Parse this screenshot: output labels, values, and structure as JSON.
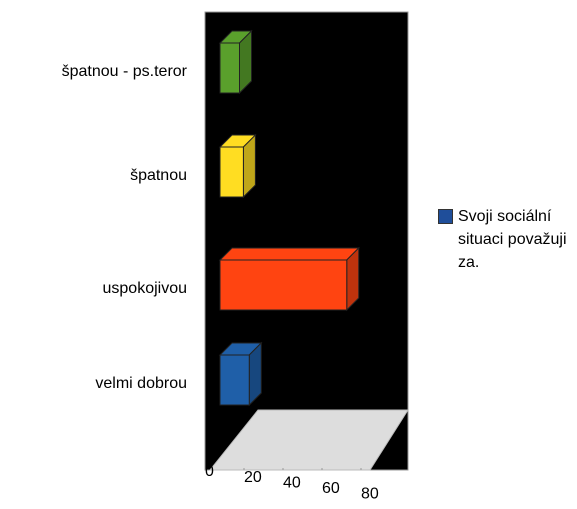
{
  "chart_data": {
    "type": "bar3d",
    "categories": [
      "špatnou - ps.teror",
      "špatnou",
      "uspokojivou",
      "velmi dobrou"
    ],
    "series": [
      {
        "name": "Svoji sociální situaci považuji za.",
        "color": "#1f4e9a",
        "values": [
          10,
          12,
          65,
          15
        ]
      }
    ],
    "colors": [
      "#5aa02c",
      "#ffdd22",
      "#ff4411",
      "#1f5fa8"
    ],
    "xlim": [
      0,
      100
    ],
    "xticks": [
      0,
      20,
      40,
      60,
      80
    ],
    "legend": "right"
  }
}
